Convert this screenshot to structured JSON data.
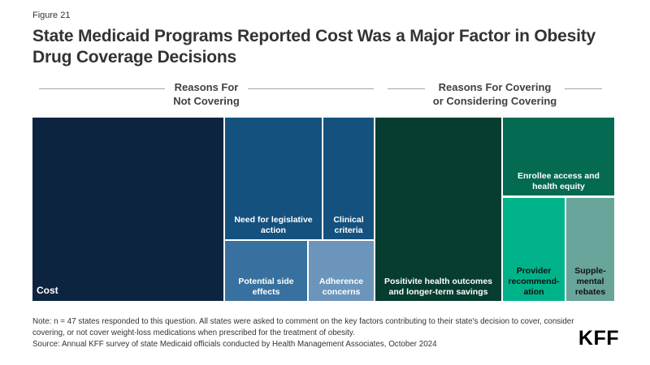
{
  "figure_label": "Figure 21",
  "title": "State Medicaid Programs Reported Cost Was a Major Factor in Obesity Drug Coverage Decisions",
  "group_headers": {
    "left": "Reasons For\nNot Covering",
    "right": "Reasons For Covering\nor Considering Covering"
  },
  "chart_data": {
    "type": "treemap",
    "title": "State Medicaid Programs Reported Cost Was a Major Factor in Obesity Drug Coverage Decisions",
    "groups": [
      {
        "name": "Reasons For Not Covering",
        "items": [
          {
            "label": "Cost",
            "display": "Cost",
            "relative_area_pct": 33,
            "color": "#0c2440",
            "text_color": "#ffffff"
          },
          {
            "label": "Need for legislative action",
            "display": "Need for legislative\naction",
            "relative_area_pct": 11,
            "color": "#15517f",
            "text_color": "#ffffff"
          },
          {
            "label": "Clinical criteria",
            "display": "Clinical\ncriteria",
            "relative_area_pct": 6,
            "color": "#15517f",
            "text_color": "#ffffff"
          },
          {
            "label": "Potential side effects",
            "display": "Potential side\neffects",
            "relative_area_pct": 4.5,
            "color": "#38719f",
            "text_color": "#ffffff"
          },
          {
            "label": "Adherence concerns",
            "display": "Adherence\nconcerns",
            "relative_area_pct": 3.5,
            "color": "#6c95bb",
            "text_color": "#ffffff"
          }
        ]
      },
      {
        "name": "Reasons For Covering or Considering Covering",
        "items": [
          {
            "label": "Positivite health outcomes and longer-term savings",
            "display": "Positivite health outcomes\nand longer-term savings",
            "relative_area_pct": 21.5,
            "color": "#063d30",
            "text_color": "#ffffff"
          },
          {
            "label": "Enrollee access and health equity",
            "display": "Enrollee access and\nhealth equity",
            "relative_area_pct": 8,
            "color": "#056a52",
            "text_color": "#ffffff"
          },
          {
            "label": "Provider recommendation",
            "display": "Provider\nrecommend-\nation",
            "relative_area_pct": 6,
            "color": "#00b28a",
            "text_color": "#111111"
          },
          {
            "label": "Supplemental rebates",
            "display": "Supple-\nmental\nrebates",
            "relative_area_pct": 4.5,
            "color": "#68a49a",
            "text_color": "#111111"
          }
        ]
      }
    ]
  },
  "note": "Note: n = 47 states responded to this question. All states were asked to comment on the key factors contributing to their state's decision to cover, consider covering, or not cover weight-loss medications when prescribed for the treatment of obesity.",
  "source": "Source: Annual KFF survey of state Medicaid officials conducted by Health Management Associates, October 2024",
  "logo_text": "KFF"
}
